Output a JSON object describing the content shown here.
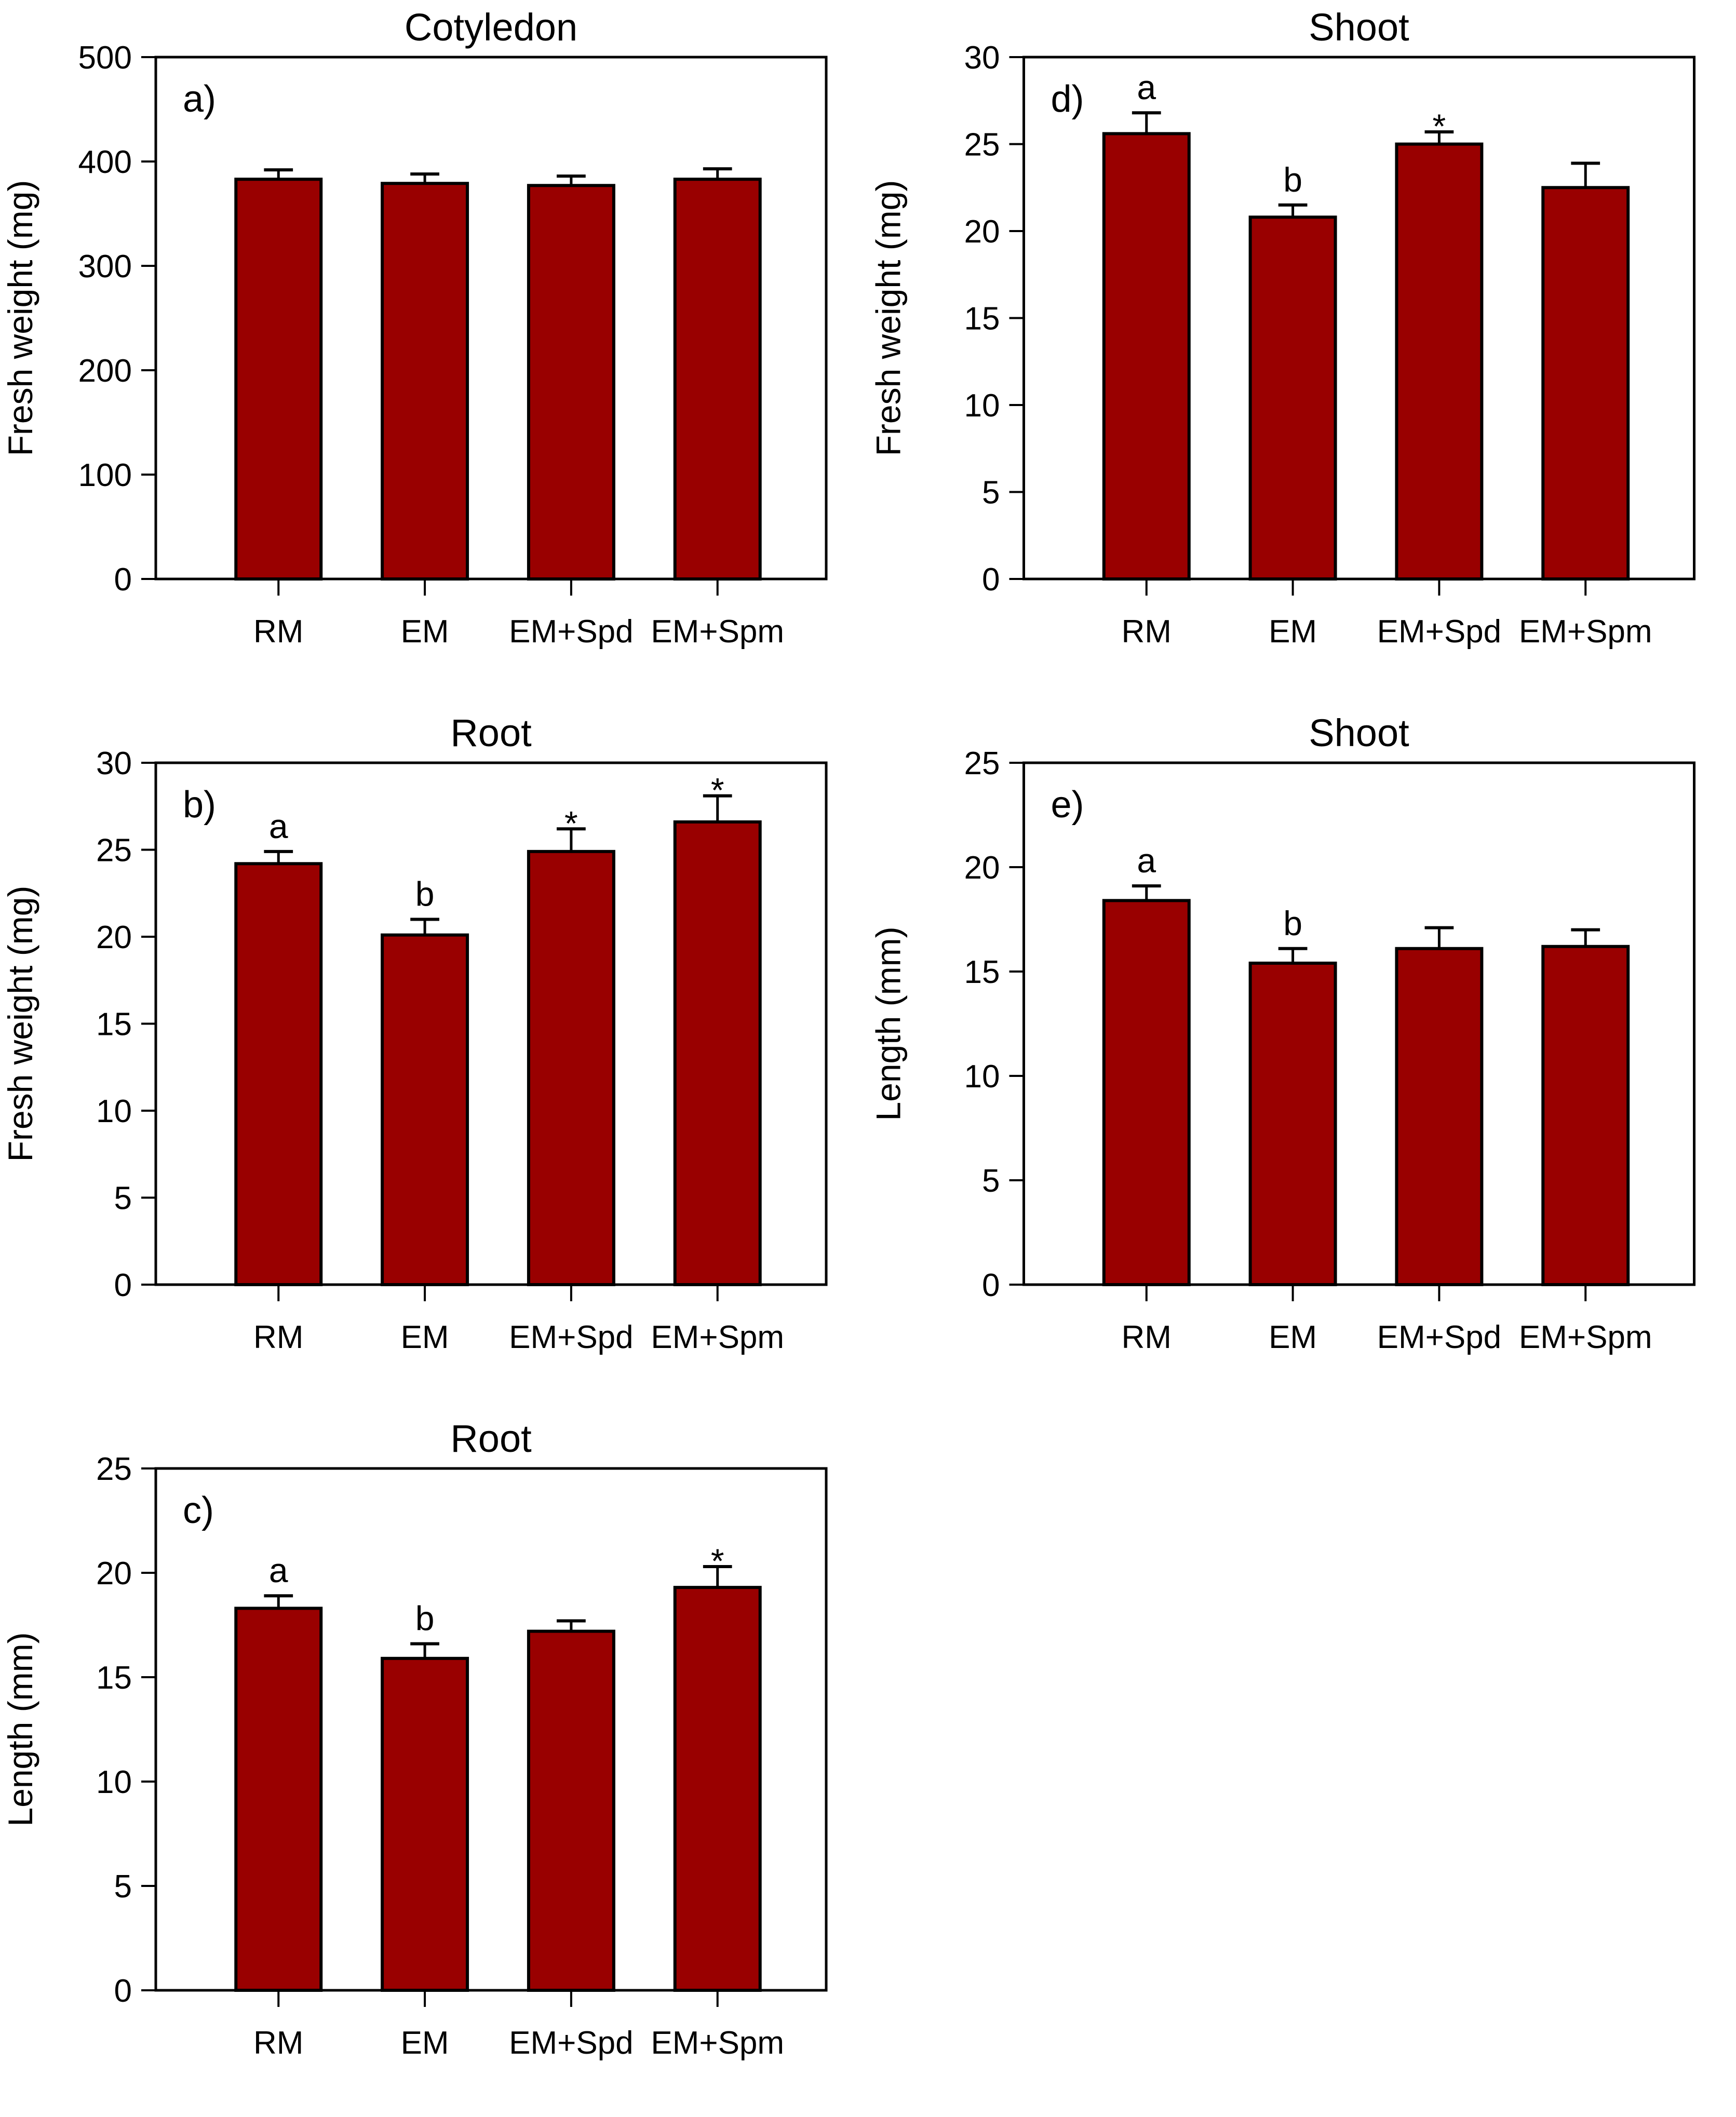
{
  "figure": {
    "background": "#ffffff",
    "description_panels": [
      "a)",
      "b)",
      "c)",
      "d)",
      "e)"
    ]
  },
  "colors": {
    "bar_fill": "#990000",
    "bar_border": "#000000",
    "axis": "#000000",
    "text": "#000000",
    "error_bar": "#000000"
  },
  "chart_data": [
    {
      "type": "bar",
      "panel_label": "a)",
      "title": "Cotyledon",
      "xlabel": "",
      "ylabel": "Fresh weight (mg)",
      "ylim": [
        0,
        500
      ],
      "ytick_step": 100,
      "ytick_labels": [
        "0",
        "100",
        "200",
        "300",
        "400",
        "500"
      ],
      "categories": [
        "RM",
        "EM",
        "EM+Spd",
        "EM+Spm"
      ],
      "values": [
        383,
        379,
        377,
        383
      ],
      "errors_plus": [
        9,
        9,
        9,
        10
      ],
      "annotations": [
        "",
        "",
        "",
        ""
      ],
      "grid": "off",
      "legend": "none"
    },
    {
      "type": "bar",
      "panel_label": "d)",
      "title": "Shoot",
      "xlabel": "",
      "ylabel": "Fresh weight (mg)",
      "ylim": [
        0,
        30
      ],
      "ytick_step": 5,
      "ytick_labels": [
        "0",
        "5",
        "10",
        "15",
        "20",
        "25",
        "30"
      ],
      "categories": [
        "RM",
        "EM",
        "EM+Spd",
        "EM+Spm"
      ],
      "values": [
        25.6,
        20.8,
        25.0,
        22.5
      ],
      "errors_plus": [
        1.2,
        0.7,
        0.7,
        1.4
      ],
      "annotations": [
        "a",
        "b",
        "*",
        ""
      ],
      "grid": "off",
      "legend": "none"
    },
    {
      "type": "bar",
      "panel_label": "b)",
      "title": "Root",
      "xlabel": "",
      "ylabel": "Fresh weight (mg)",
      "ylim": [
        0,
        30
      ],
      "ytick_step": 5,
      "ytick_labels": [
        "0",
        "5",
        "10",
        "15",
        "20",
        "25",
        "30"
      ],
      "categories": [
        "RM",
        "EM",
        "EM+Spd",
        "EM+Spm"
      ],
      "values": [
        24.2,
        20.1,
        24.9,
        26.6
      ],
      "errors_plus": [
        0.7,
        0.9,
        1.3,
        1.5
      ],
      "annotations": [
        "a",
        "b",
        "*",
        "*"
      ],
      "grid": "off",
      "legend": "none"
    },
    {
      "type": "bar",
      "panel_label": "e)",
      "title": "Shoot",
      "xlabel": "",
      "ylabel": "Length (mm)",
      "ylim": [
        0,
        25
      ],
      "ytick_step": 5,
      "ytick_labels": [
        "0",
        "5",
        "10",
        "15",
        "20",
        "25"
      ],
      "categories": [
        "RM",
        "EM",
        "EM+Spd",
        "EM+Spm"
      ],
      "values": [
        18.4,
        15.4,
        16.1,
        16.2
      ],
      "errors_plus": [
        0.7,
        0.7,
        1.0,
        0.8
      ],
      "annotations": [
        "a",
        "b",
        "",
        ""
      ],
      "grid": "off",
      "legend": "none"
    },
    {
      "type": "bar",
      "panel_label": "c)",
      "title": "Root",
      "xlabel": "",
      "ylabel": "Length (mm)",
      "ylim": [
        0,
        25
      ],
      "ytick_step": 5,
      "ytick_labels": [
        "0",
        "5",
        "10",
        "15",
        "20",
        "25"
      ],
      "categories": [
        "RM",
        "EM",
        "EM+Spd",
        "EM+Spm"
      ],
      "values": [
        18.3,
        15.9,
        17.2,
        19.3
      ],
      "errors_plus": [
        0.6,
        0.7,
        0.5,
        1.0
      ],
      "annotations": [
        "a",
        "b",
        "",
        "*"
      ],
      "grid": "off",
      "legend": "none"
    }
  ]
}
